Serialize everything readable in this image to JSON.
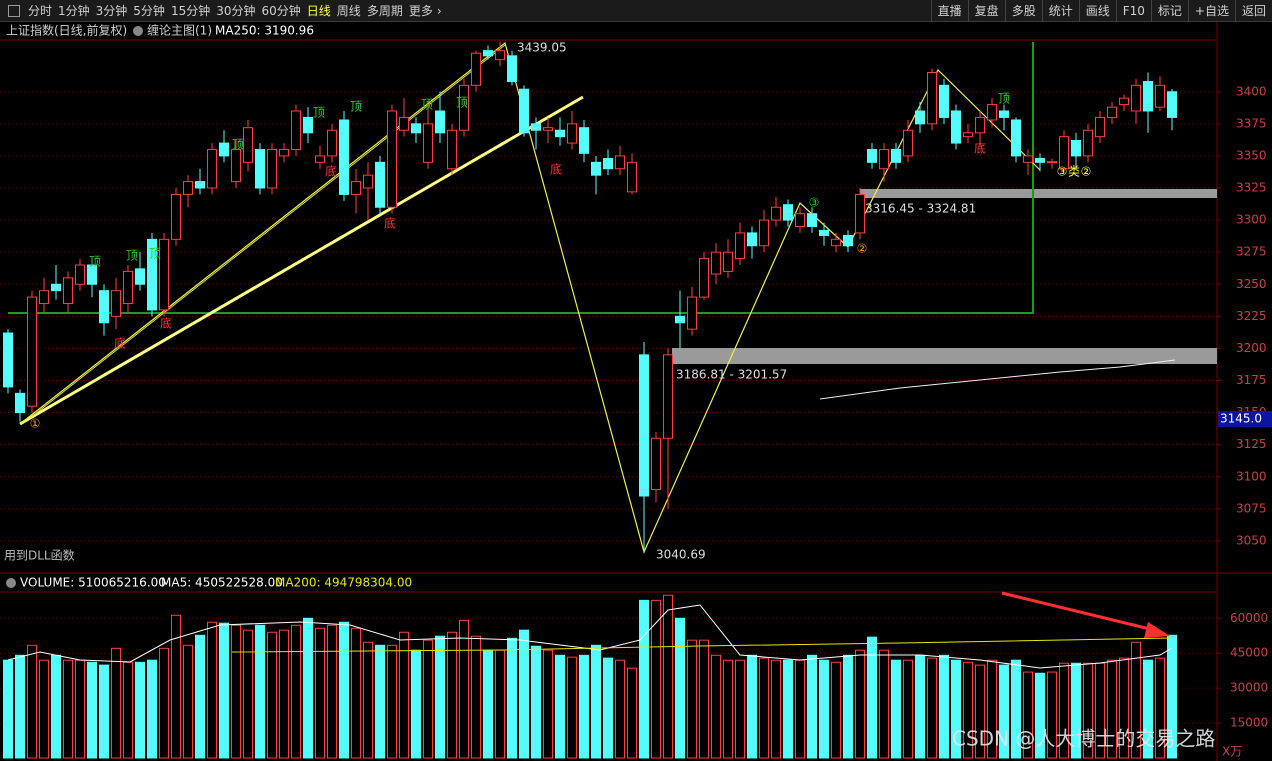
{
  "toolbar": {
    "tabs": [
      "分时",
      "1分钟",
      "3分钟",
      "5分钟",
      "15分钟",
      "30分钟",
      "60分钟",
      "日线",
      "周线",
      "多周期",
      "更多"
    ],
    "active_tab": "日线",
    "buttons": [
      "直播",
      "复盘",
      "多股",
      "统计",
      "画线",
      "F10",
      "标记",
      "+自选",
      "返回"
    ]
  },
  "chart_data": [
    {
      "type": "candlestick",
      "title": "上证指数(日线,前复权)",
      "indicator": "缠论主图(1)",
      "ma_label": "MA250: 3190.96",
      "open": [
        3212,
        3165,
        3155,
        3235,
        3250,
        3235,
        3250,
        3265,
        3245,
        3225,
        3235,
        3262,
        3285,
        3230,
        3285,
        3320,
        3330,
        3325,
        3360,
        3330,
        3345,
        3355,
        3325,
        3350,
        3355,
        3380,
        3345,
        3350,
        3378,
        3320,
        3325,
        3345,
        3310,
        3370,
        3375,
        3345,
        3385,
        3340,
        3370,
        3405,
        3432,
        3425,
        3428,
        3402,
        3375,
        3370,
        3370,
        3360,
        3372,
        3345,
        3348,
        3340,
        3322,
        3195,
        3090,
        3130,
        3225,
        3215,
        3240,
        3258,
        3260,
        3270,
        3290,
        3280,
        3300,
        3312,
        3295,
        3305,
        3292,
        3280,
        3288,
        3290,
        3355,
        3340,
        3355,
        3350,
        3385,
        3375,
        3405,
        3385,
        3365,
        3368,
        3378,
        3385,
        3378,
        3345,
        3348,
        3345,
        3340,
        3362,
        3350,
        3365,
        3380,
        3390,
        3385,
        3408,
        3388,
        3400
      ],
      "high": [
        3215,
        3168,
        3245,
        3255,
        3265,
        3260,
        3270,
        3270,
        3250,
        3255,
        3265,
        3275,
        3290,
        3290,
        3325,
        3335,
        3340,
        3360,
        3370,
        3362,
        3378,
        3360,
        3360,
        3360,
        3390,
        3388,
        3358,
        3375,
        3385,
        3340,
        3345,
        3350,
        3390,
        3395,
        3380,
        3390,
        3400,
        3375,
        3410,
        3432,
        3436,
        3439.05,
        3432,
        3405,
        3380,
        3380,
        3380,
        3385,
        3378,
        3350,
        3355,
        3358,
        3352,
        3205,
        3135,
        3200,
        3245,
        3248,
        3275,
        3282,
        3285,
        3298,
        3295,
        3308,
        3318,
        3316,
        3310,
        3310,
        3298,
        3290,
        3292,
        3325,
        3360,
        3360,
        3360,
        3378,
        3392,
        3418,
        3410,
        3390,
        3375,
        3385,
        3395,
        3390,
        3380,
        3355,
        3352,
        3348,
        3370,
        3368,
        3375,
        3385,
        3392,
        3398,
        3410,
        3415,
        3412,
        3402
      ],
      "low": [
        3165,
        3143,
        3150,
        3228,
        3238,
        3228,
        3245,
        3240,
        3210,
        3215,
        3228,
        3245,
        3225,
        3225,
        3280,
        3310,
        3320,
        3320,
        3345,
        3325,
        3338,
        3320,
        3320,
        3345,
        3350,
        3360,
        3340,
        3345,
        3315,
        3305,
        3300,
        3305,
        3305,
        3365,
        3360,
        3340,
        3360,
        3335,
        3365,
        3400,
        3425,
        3420,
        3405,
        3365,
        3355,
        3360,
        3358,
        3355,
        3345,
        3320,
        3335,
        3335,
        3320,
        3040.69,
        3080,
        3075,
        3200,
        3210,
        3238,
        3250,
        3255,
        3265,
        3270,
        3275,
        3295,
        3295,
        3290,
        3290,
        3280,
        3275,
        3275,
        3285,
        3340,
        3330,
        3340,
        3345,
        3368,
        3370,
        3375,
        3355,
        3360,
        3358,
        3372,
        3370,
        3345,
        3335,
        3338,
        3340,
        3338,
        3340,
        3345,
        3360,
        3375,
        3385,
        3375,
        3368,
        3385,
        3370
      ],
      "close": [
        3170,
        3150,
        3240,
        3245,
        3245,
        3255,
        3265,
        3250,
        3220,
        3245,
        3260,
        3250,
        3230,
        3285,
        3320,
        3330,
        3325,
        3355,
        3350,
        3355,
        3372,
        3325,
        3355,
        3355,
        3385,
        3368,
        3350,
        3370,
        3320,
        3330,
        3335,
        3310,
        3385,
        3380,
        3368,
        3375,
        3368,
        3370,
        3405,
        3430,
        3428,
        3432,
        3408,
        3368,
        3370,
        3372,
        3365,
        3375,
        3352,
        3335,
        3340,
        3350,
        3345,
        3085,
        3130,
        3195,
        3220,
        3240,
        3270,
        3275,
        3275,
        3290,
        3280,
        3300,
        3310,
        3300,
        3305,
        3295,
        3288,
        3285,
        3280,
        3320,
        3345,
        3355,
        3345,
        3370,
        3375,
        3415,
        3380,
        3360,
        3368,
        3380,
        3390,
        3380,
        3350,
        3350,
        3345,
        3345.5,
        3365,
        3350,
        3370,
        3380,
        3388,
        3395,
        3405,
        3385,
        3405,
        3380
      ],
      "ylim": [
        3025,
        3445
      ],
      "yticks": [
        3050,
        3075,
        3100,
        3125,
        3150,
        3175,
        3200,
        3225,
        3250,
        3275,
        3300,
        3325,
        3350,
        3375,
        3400
      ],
      "colors": {
        "up": "#ff3c3c",
        "down": "#54fcfc"
      },
      "current_price": {
        "value": 3145,
        "label": "3145.0"
      },
      "price_labels": [
        "3439.05",
        "3040.69",
        "3316.45 - 3324.81",
        "3186.81 - 3201.57"
      ],
      "note": "用到DLL函数",
      "annotations": [
        "顶",
        "顶",
        "顶",
        "顶",
        "顶",
        "顶",
        "顶",
        "顶",
        "顶",
        "底",
        "底",
        "底",
        "底",
        "底",
        "底",
        "①",
        "③",
        "②",
        "③",
        "类",
        "②"
      ]
    },
    {
      "type": "bar",
      "legend": [
        "VOLUME: 510065216.00",
        "MA5: 450522528.00",
        "MA200: 494798304.00"
      ],
      "values": [
        42000,
        44100,
        48400,
        42000,
        44100,
        42000,
        42000,
        41100,
        39900,
        47100,
        41100,
        41100,
        42000,
        47100,
        61300,
        48400,
        52700,
        58300,
        57900,
        57000,
        54900,
        57000,
        54000,
        54900,
        57000,
        60000,
        55700,
        57000,
        58300,
        55700,
        49700,
        48400,
        48400,
        54000,
        46300,
        50600,
        52300,
        54000,
        59100,
        52300,
        46300,
        46300,
        51400,
        54900,
        48000,
        46300,
        44100,
        43300,
        44100,
        48400,
        42900,
        42000,
        38600,
        67700,
        67700,
        69900,
        60000,
        50600,
        50600,
        44100,
        42000,
        42000,
        44100,
        42900,
        42000,
        42000,
        42000,
        44100,
        42000,
        41100,
        44100,
        46300,
        51900,
        46300,
        42000,
        42000,
        44100,
        42900,
        44100,
        42000,
        41100,
        39900,
        42000,
        39900,
        42000,
        36900,
        36400,
        36900,
        40700,
        40700,
        40700,
        40700,
        42000,
        42900,
        49700,
        42000,
        42900,
        52700
      ],
      "ylim": [
        0,
        70000
      ],
      "yticks": [
        15000,
        30000,
        45000,
        60000
      ],
      "unit": "X万"
    }
  ],
  "watermark": "CSDN @人大博士的交易之路"
}
